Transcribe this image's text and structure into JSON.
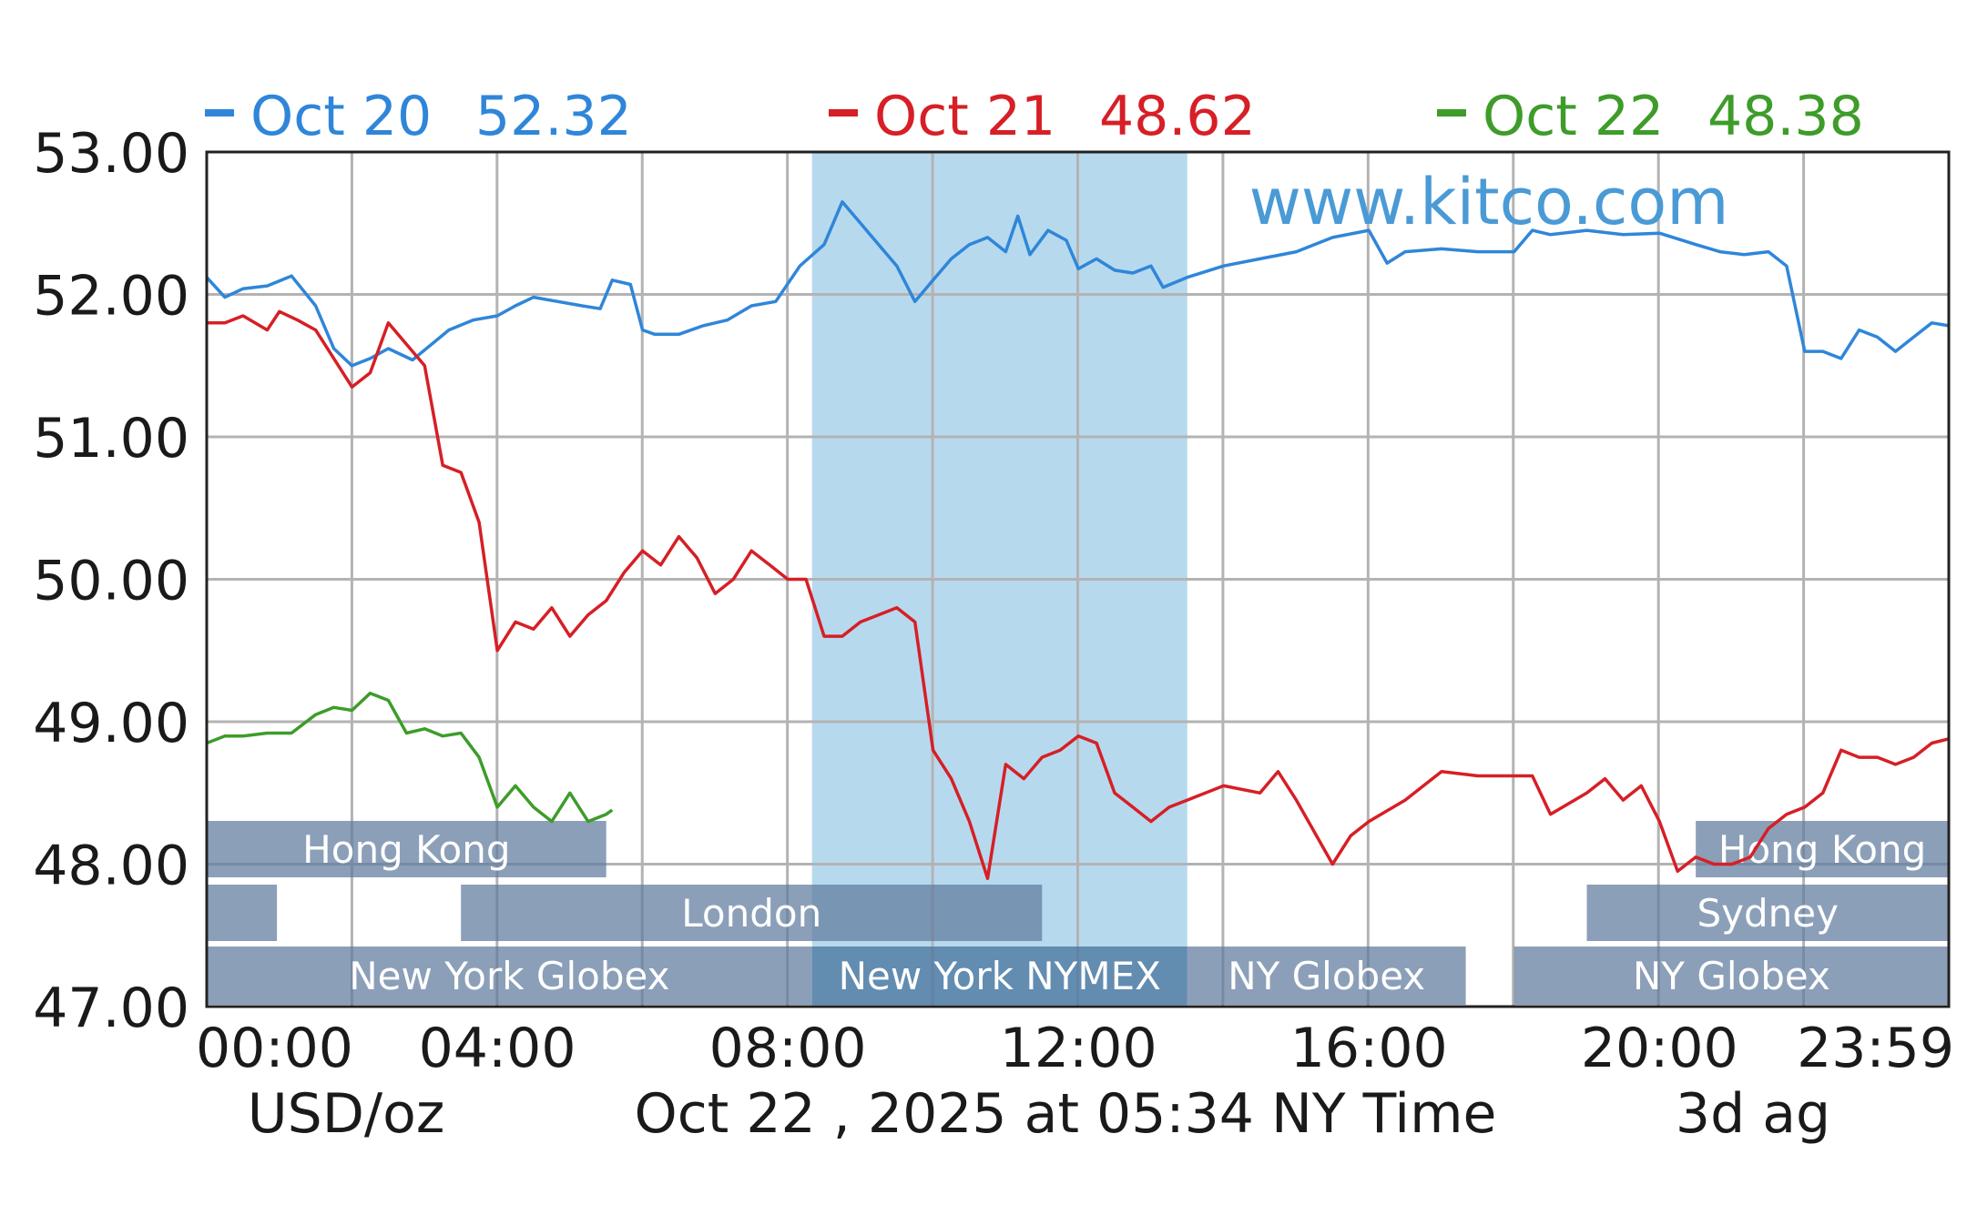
{
  "chart_data": {
    "type": "line",
    "unit_label": "USD/oz",
    "timestamp_label": "Oct 22 , 2025 at 05:34 NY Time",
    "range_label": "3d ag",
    "watermark": "www.kitco.com",
    "ylim": [
      47,
      53
    ],
    "y_ticks": [
      "53.00",
      "52.00",
      "51.00",
      "50.00",
      "49.00",
      "48.00",
      "47.00"
    ],
    "x_ticks": [
      "00:00",
      "04:00",
      "08:00",
      "12:00",
      "16:00",
      "20:00",
      "23:59"
    ],
    "grid": true,
    "highlight_window": {
      "label": "New York NYMEX",
      "from": "08:20",
      "to": "13:30",
      "color": "#b7d9ee"
    },
    "sessions": [
      {
        "label": "Hong Kong",
        "row": 1,
        "from": "00:00",
        "to": "05:30"
      },
      {
        "label": "",
        "row": 2,
        "from": "00:00",
        "to": "00:58"
      },
      {
        "label": "London",
        "row": 2,
        "from": "03:30",
        "to": "11:30"
      },
      {
        "label": "New York Globex",
        "row": 3,
        "from": "00:00",
        "to": "08:20"
      },
      {
        "label": "New York NYMEX",
        "row": 3,
        "from": "08:20",
        "to": "13:30"
      },
      {
        "label": "NY Globex",
        "row": 3,
        "from": "13:30",
        "to": "17:20"
      },
      {
        "label": "NY Globex",
        "row": 3,
        "from": "18:00",
        "to": "23:59"
      },
      {
        "label": "Hong Kong",
        "row": 1,
        "from": "20:30",
        "to": "23:59"
      },
      {
        "label": "Sydney",
        "row": 2,
        "from": "19:00",
        "to": "23:59"
      }
    ],
    "series": [
      {
        "name": "Oct 20",
        "latest": "52.32",
        "color": "#2f86d9",
        "x": [
          "00:00",
          "00:15",
          "00:30",
          "00:50",
          "01:10",
          "01:30",
          "01:45",
          "02:00",
          "02:15",
          "02:30",
          "02:50",
          "03:10",
          "03:20",
          "03:40",
          "04:00",
          "04:15",
          "04:30",
          "04:50",
          "05:10",
          "05:25",
          "05:35",
          "05:50",
          "06:00",
          "06:10",
          "06:30",
          "06:50",
          "07:10",
          "07:30",
          "07:50",
          "08:10",
          "08:30",
          "08:45",
          "09:00",
          "09:15",
          "09:30",
          "09:45",
          "10:00",
          "10:15",
          "10:30",
          "10:45",
          "11:00",
          "11:10",
          "11:20",
          "11:35",
          "11:50",
          "12:00",
          "12:15",
          "12:30",
          "12:45",
          "13:00",
          "13:10",
          "13:30",
          "14:00",
          "14:30",
          "15:00",
          "15:30",
          "16:00",
          "16:15",
          "16:30",
          "17:00",
          "17:30",
          "18:00",
          "18:15",
          "18:30",
          "19:00",
          "19:30",
          "20:00",
          "20:30",
          "20:50",
          "21:10",
          "21:30",
          "21:45",
          "22:00",
          "22:15",
          "22:30",
          "22:45",
          "23:00",
          "23:15",
          "23:30",
          "23:45",
          "23:59"
        ],
        "y": [
          52.12,
          51.98,
          52.04,
          52.06,
          52.13,
          51.92,
          51.62,
          51.5,
          51.55,
          51.62,
          51.54,
          51.68,
          51.75,
          51.82,
          51.85,
          51.92,
          51.98,
          51.95,
          51.92,
          51.9,
          52.1,
          52.07,
          51.75,
          51.72,
          51.72,
          51.78,
          51.82,
          51.92,
          51.95,
          52.2,
          52.35,
          52.65,
          52.5,
          52.35,
          52.2,
          51.95,
          52.1,
          52.25,
          52.35,
          52.4,
          52.3,
          52.55,
          52.28,
          52.45,
          52.38,
          52.18,
          52.25,
          52.17,
          52.15,
          52.2,
          52.05,
          52.12,
          52.2,
          52.25,
          52.3,
          52.4,
          52.45,
          52.22,
          52.3,
          52.32,
          52.3,
          52.3,
          52.45,
          52.42,
          52.45,
          52.42,
          52.43,
          52.35,
          52.3,
          52.28,
          52.3,
          52.2,
          51.6,
          51.6,
          51.55,
          51.75,
          51.7,
          51.6,
          51.7,
          51.8,
          51.78
        ]
      },
      {
        "name": "Oct 21",
        "latest": "48.62",
        "color": "#d61f26",
        "x": [
          "00:00",
          "00:15",
          "00:30",
          "00:50",
          "01:00",
          "01:15",
          "01:30",
          "01:45",
          "02:00",
          "02:15",
          "02:30",
          "02:50",
          "03:00",
          "03:15",
          "03:30",
          "03:45",
          "04:00",
          "04:15",
          "04:30",
          "04:45",
          "05:00",
          "05:15",
          "05:30",
          "05:45",
          "06:00",
          "06:15",
          "06:30",
          "06:45",
          "07:00",
          "07:15",
          "07:30",
          "07:45",
          "08:00",
          "08:15",
          "08:30",
          "08:45",
          "09:00",
          "09:15",
          "09:30",
          "09:45",
          "10:00",
          "10:15",
          "10:30",
          "10:45",
          "11:00",
          "11:15",
          "11:30",
          "11:45",
          "12:00",
          "12:15",
          "12:30",
          "12:45",
          "13:00",
          "13:15",
          "13:30",
          "14:00",
          "14:30",
          "14:45",
          "15:00",
          "15:30",
          "15:45",
          "16:00",
          "16:30",
          "17:00",
          "17:30",
          "18:00",
          "18:15",
          "18:30",
          "19:00",
          "19:15",
          "19:30",
          "19:45",
          "20:00",
          "20:15",
          "20:30",
          "20:45",
          "21:00",
          "21:15",
          "21:30",
          "21:45",
          "22:00",
          "22:15",
          "22:30",
          "22:45",
          "23:00",
          "23:15",
          "23:30",
          "23:45",
          "23:59"
        ],
        "y": [
          51.8,
          51.8,
          51.85,
          51.75,
          51.88,
          51.82,
          51.75,
          51.55,
          51.35,
          51.45,
          51.8,
          51.6,
          51.5,
          50.8,
          50.75,
          50.4,
          49.5,
          49.7,
          49.65,
          49.8,
          49.6,
          49.75,
          49.85,
          50.05,
          50.2,
          50.1,
          50.3,
          50.15,
          49.9,
          50.0,
          50.2,
          50.1,
          50.0,
          50.0,
          49.6,
          49.6,
          49.7,
          49.75,
          49.8,
          49.7,
          48.8,
          48.6,
          48.3,
          47.9,
          48.7,
          48.6,
          48.75,
          48.8,
          48.9,
          48.85,
          48.5,
          48.4,
          48.3,
          48.4,
          48.45,
          48.55,
          48.5,
          48.65,
          48.45,
          48.0,
          48.2,
          48.3,
          48.45,
          48.65,
          48.62,
          48.62,
          48.62,
          48.35,
          48.5,
          48.6,
          48.45,
          48.55,
          48.3,
          47.95,
          48.05,
          48.0,
          48.0,
          48.05,
          48.25,
          48.35,
          48.4,
          48.5,
          48.8,
          48.75,
          48.75,
          48.7,
          48.75,
          48.85,
          48.88
        ]
      },
      {
        "name": "Oct 22",
        "latest": "48.38",
        "color": "#3e9c2a",
        "x": [
          "00:00",
          "00:15",
          "00:30",
          "00:50",
          "01:10",
          "01:30",
          "01:45",
          "02:00",
          "02:15",
          "02:30",
          "02:45",
          "03:00",
          "03:15",
          "03:30",
          "03:45",
          "04:00",
          "04:15",
          "04:30",
          "04:45",
          "05:00",
          "05:15",
          "05:30",
          "05:35"
        ],
        "y": [
          48.85,
          48.9,
          48.9,
          48.92,
          48.92,
          49.05,
          49.1,
          49.08,
          49.2,
          49.15,
          48.92,
          48.95,
          48.9,
          48.92,
          48.75,
          48.4,
          48.55,
          48.4,
          48.3,
          48.5,
          48.3,
          48.35,
          48.38
        ]
      }
    ]
  }
}
